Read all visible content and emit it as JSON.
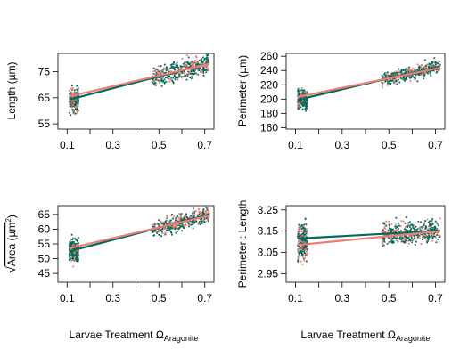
{
  "colors": {
    "treatment_a": "#006b5e",
    "treatment_b": "#f07c72",
    "axis": "#000000"
  },
  "shared_xlabel": "Larvae Treatment Ω",
  "shared_xlabel_sub": "Aragonite",
  "chart_data": [
    {
      "type": "scatter",
      "ylabel": "Length (µm)",
      "xticks": [
        "0.1",
        "0.3",
        "0.5",
        "0.7"
      ],
      "yticks": [
        "55",
        "65",
        "75"
      ],
      "xlim": [
        0.06,
        0.74
      ],
      "ylim": [
        53,
        82
      ],
      "clusters": [
        {
          "x_range": [
            0.11,
            0.15
          ],
          "center": 64,
          "spread": 5
        },
        {
          "x_range": [
            0.47,
            0.72
          ],
          "center": 74,
          "spread": 4
        }
      ],
      "fit_lines": [
        {
          "x": [
            0.11,
            0.72
          ],
          "y": [
            64.3,
            78.2
          ]
        },
        {
          "x": [
            0.11,
            0.72
          ],
          "y": [
            65.5,
            78.0
          ]
        }
      ]
    },
    {
      "type": "scatter",
      "ylabel": "Perimeter (µm)",
      "xticks": [
        "0.1",
        "0.3",
        "0.5",
        "0.7"
      ],
      "yticks": [
        "160",
        "180",
        "200",
        "220",
        "240",
        "260"
      ],
      "xlim": [
        0.06,
        0.74
      ],
      "ylim": [
        158,
        264
      ],
      "clusters": [
        {
          "x_range": [
            0.11,
            0.15
          ],
          "center": 200,
          "spread": 15
        },
        {
          "x_range": [
            0.47,
            0.72
          ],
          "center": 236,
          "spread": 10
        }
      ],
      "fit_lines": [
        {
          "x": [
            0.11,
            0.72
          ],
          "y": [
            199,
            246
          ]
        },
        {
          "x": [
            0.11,
            0.72
          ],
          "y": [
            203,
            244
          ]
        }
      ]
    },
    {
      "type": "scatter",
      "ylabel": "√Area (µm²)",
      "ylabel_parts": [
        "√",
        "Area (µm",
        "2",
        ")"
      ],
      "xticks": [
        "0.1",
        "0.3",
        "0.5",
        "0.7"
      ],
      "yticks": [
        "45",
        "50",
        "55",
        "60",
        "65"
      ],
      "xlim": [
        0.06,
        0.74
      ],
      "ylim": [
        42,
        68
      ],
      "clusters": [
        {
          "x_range": [
            0.11,
            0.15
          ],
          "center": 53,
          "spread": 4
        },
        {
          "x_range": [
            0.47,
            0.72
          ],
          "center": 61.5,
          "spread": 3
        }
      ],
      "fit_lines": [
        {
          "x": [
            0.11,
            0.72
          ],
          "y": [
            52.5,
            65.0
          ]
        },
        {
          "x": [
            0.11,
            0.72
          ],
          "y": [
            53.5,
            64.6
          ]
        }
      ]
    },
    {
      "type": "scatter",
      "ylabel": "Perimeter : Length",
      "xticks": [
        "0.1",
        "0.3",
        "0.5",
        "0.7"
      ],
      "yticks": [
        "2.95",
        "3.05",
        "3.15",
        "3.25"
      ],
      "xlim": [
        0.06,
        0.74
      ],
      "ylim": [
        2.91,
        3.27
      ],
      "clusters": [
        {
          "x_range": [
            0.11,
            0.15
          ],
          "center": 3.1,
          "spread": 0.09
        },
        {
          "x_range": [
            0.47,
            0.72
          ],
          "center": 3.14,
          "spread": 0.06
        }
      ],
      "fit_lines": [
        {
          "x": [
            0.11,
            0.72
          ],
          "y": [
            3.115,
            3.152
          ]
        },
        {
          "x": [
            0.11,
            0.72
          ],
          "y": [
            3.085,
            3.15
          ]
        }
      ]
    }
  ]
}
